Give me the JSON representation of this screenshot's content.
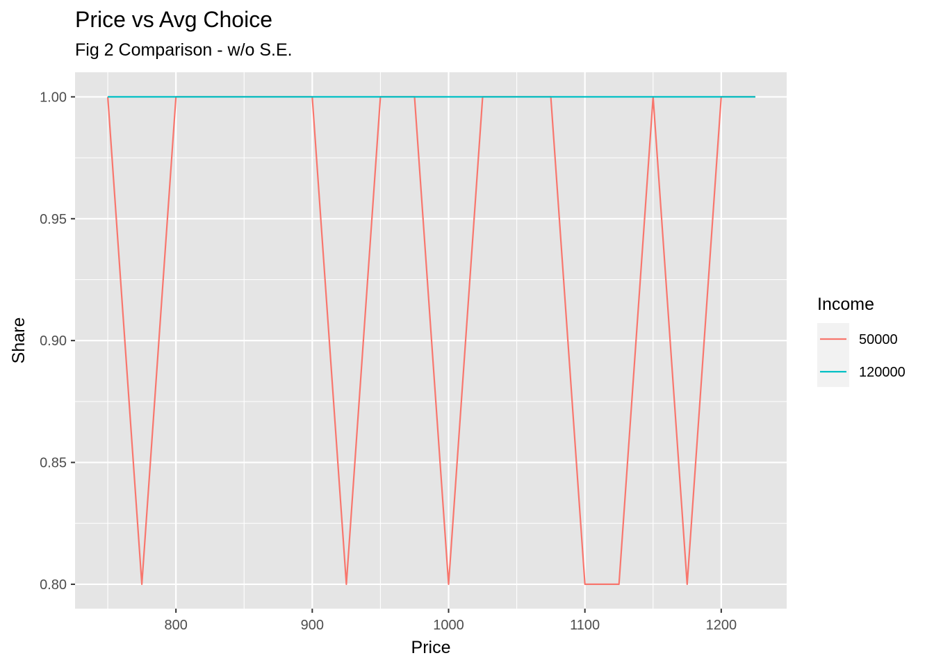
{
  "chart_data": {
    "type": "line",
    "title": "Price vs Avg Choice",
    "subtitle": "Fig 2 Comparison - w/o S.E.",
    "xlabel": "Price",
    "ylabel": "Share",
    "xlim": [
      726,
      1248
    ],
    "ylim": [
      0.79,
      1.0101
    ],
    "x_ticks": [
      800,
      900,
      1000,
      1100,
      1200
    ],
    "x_tick_labels": [
      "800",
      "900",
      "1000",
      "1100",
      "1200"
    ],
    "y_ticks": [
      0.8,
      0.85,
      0.9,
      0.95,
      1.0
    ],
    "y_tick_labels": [
      "0.80",
      "0.85",
      "0.90",
      "0.95",
      "1.00"
    ],
    "grid": true,
    "legend": {
      "title": "Income",
      "position": "right"
    },
    "x": [
      750,
      775,
      800,
      825,
      850,
      875,
      900,
      925,
      950,
      975,
      1000,
      1025,
      1050,
      1075,
      1100,
      1125,
      1150,
      1175,
      1200,
      1225
    ],
    "series": [
      {
        "name": "50000",
        "color": "#F8766D",
        "values": [
          1.0,
          0.8,
          1.0,
          1.0,
          1.0,
          1.0,
          1.0,
          0.8,
          1.0,
          1.0,
          0.8,
          1.0,
          1.0,
          1.0,
          0.8,
          0.8,
          1.0,
          0.8,
          1.0,
          1.0
        ]
      },
      {
        "name": "120000",
        "color": "#00BFC4",
        "values": [
          1.0,
          1.0,
          1.0,
          1.0,
          1.0,
          1.0,
          1.0,
          1.0,
          1.0,
          1.0,
          1.0,
          1.0,
          1.0,
          1.0,
          1.0,
          1.0,
          1.0,
          1.0,
          1.0,
          1.0
        ]
      }
    ],
    "colors": {
      "panel": "#E5E5E5",
      "grid": "#FFFFFF"
    }
  }
}
